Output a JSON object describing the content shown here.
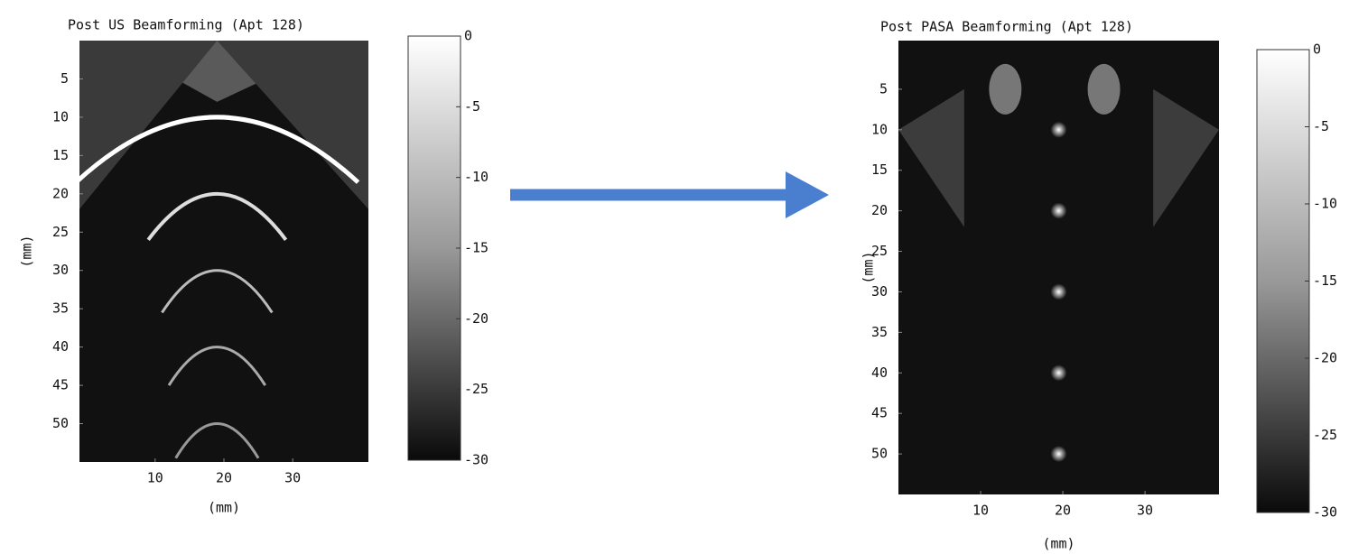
{
  "chart_data": [
    {
      "type": "image",
      "title": "Post US Beamforming (Apt 128)",
      "xlabel": "(mm)",
      "ylabel": "(mm)",
      "xlim": [
        -1,
        41
      ],
      "xticks": [
        10,
        20,
        30
      ],
      "ylim": [
        0,
        55
      ],
      "yticks": [
        5,
        10,
        15,
        20,
        25,
        30,
        35,
        40,
        45,
        50
      ],
      "colorbar": {
        "lim": [
          -30,
          0
        ],
        "ticks": [
          0,
          -5,
          -10,
          -15,
          -20,
          -25,
          -30
        ]
      }
    },
    {
      "type": "image",
      "title": "Post PASA Beamforming (Apt 128)",
      "xlabel": "(mm)",
      "ylabel": "(mm)",
      "xlim": [
        0,
        39
      ],
      "xticks": [
        10,
        20,
        30
      ],
      "ylim": [
        -1,
        55
      ],
      "yticks": [
        5,
        10,
        15,
        20,
        25,
        30,
        35,
        40,
        45,
        50
      ],
      "colorbar": {
        "lim": [
          -30,
          0
        ],
        "ticks": [
          0,
          -5,
          -10,
          -15,
          -20,
          -25,
          -30
        ]
      }
    }
  ]
}
